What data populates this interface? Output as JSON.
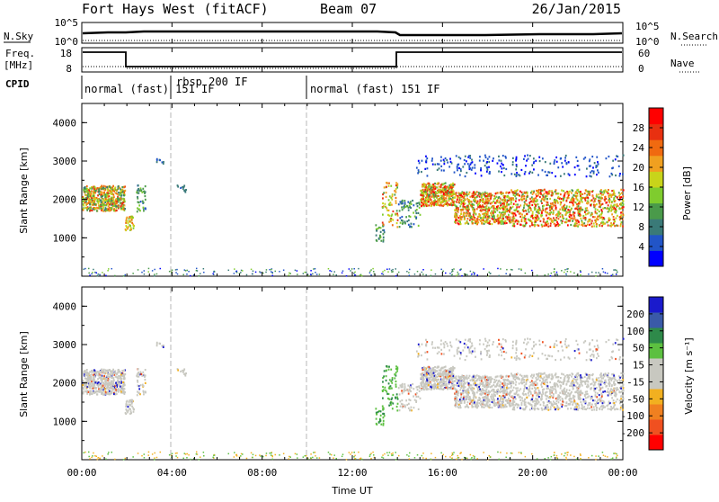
{
  "header": {
    "title": "Fort Hays West (fitACF)",
    "beam": "Beam 07",
    "date": "26/Jan/2015"
  },
  "nsky_panel": {
    "left_label": "N.Sky",
    "left_tick_top": "10^5",
    "left_tick_bottom": "10^0",
    "right_tick_top": "10^5",
    "right_tick_bottom": "10^0",
    "right_label": "N.Search"
  },
  "freq_panel": {
    "left_label_top": "Freq.",
    "left_label_bottom": "[MHz]",
    "left_tick_top": "18",
    "left_tick_bottom": "8",
    "right_tick_top": "60",
    "right_tick_bottom": "0",
    "right_label": "Nave"
  },
  "cpid_panel": {
    "label": "CPID",
    "segments": [
      "normal (fast) 151 IF",
      "rbsp 200 IF",
      "normal (fast) 151 IF"
    ]
  },
  "power_panel": {
    "ylabel": "Slant Range [km]",
    "yticks": [
      "1000",
      "2000",
      "3000",
      "4000"
    ],
    "colorbar_label": "Power [dB]",
    "colorbar_ticks": [
      "4",
      "8",
      "12",
      "16",
      "20",
      "24",
      "28"
    ],
    "colorbar_colors": [
      "#0000ff",
      "#2255c8",
      "#3a7a78",
      "#4a9a4a",
      "#7fcc2e",
      "#c8d41a",
      "#f0a020",
      "#f06a10",
      "#e83010",
      "#ff0000"
    ]
  },
  "velocity_panel": {
    "ylabel": "Slant Range [km]",
    "yticks": [
      "1000",
      "2000",
      "3000",
      "4000"
    ],
    "colorbar_label": "Velocity [m s⁻¹]",
    "colorbar_ticks": [
      "200",
      "100",
      "50",
      "15",
      "-15",
      "-50",
      "-100",
      "-200"
    ],
    "colorbar_colors": [
      "#1a1acc",
      "#3a5aa8",
      "#2e8a4a",
      "#5cc040",
      "#c8c8c0",
      "#c8c8c0",
      "#f2b020",
      "#f08020",
      "#f05020",
      "#ff0000"
    ]
  },
  "xaxis": {
    "label": "Time UT",
    "ticks": [
      "00:00",
      "04:00",
      "08:00",
      "12:00",
      "16:00",
      "20:00",
      "00:00"
    ]
  }
}
